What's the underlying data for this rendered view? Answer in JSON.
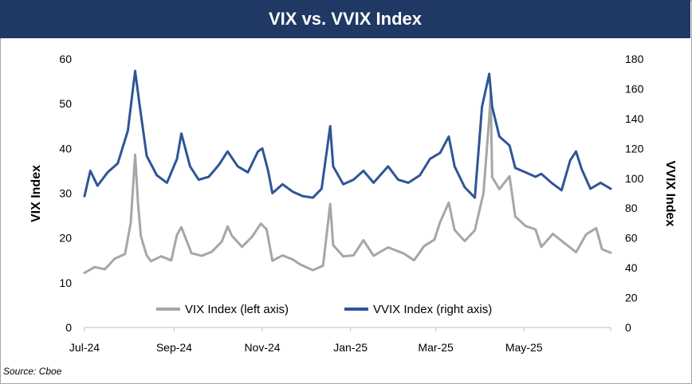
{
  "chart_data": {
    "type": "line",
    "title": "VIX vs. VVIX Index",
    "source": "Source: Cboe",
    "ylabel_left": "VIX Index",
    "ylabel_right": "VVIX Index",
    "ylim_left": [
      0,
      60
    ],
    "ylim_right": [
      0,
      180
    ],
    "yticks_left": [
      "0",
      "10",
      "20",
      "30",
      "40",
      "50",
      "60"
    ],
    "yticks_right": [
      "0",
      "20",
      "40",
      "60",
      "80",
      "100",
      "120",
      "140",
      "160",
      "180"
    ],
    "xticks": [
      {
        "label": "Jul-24",
        "date": "2024-07-01"
      },
      {
        "label": "Sep-24",
        "date": "2024-09-01"
      },
      {
        "label": "Nov-24",
        "date": "2024-11-01"
      },
      {
        "label": "Jan-25",
        "date": "2025-01-01"
      },
      {
        "label": "Mar-25",
        "date": "2025-03-01"
      },
      {
        "label": "May-25",
        "date": "2025-05-01"
      }
    ],
    "xlim": [
      "2024-07-01",
      "2025-06-30"
    ],
    "legend_position": "bottom",
    "series": [
      {
        "name": "VIX Index (left axis)",
        "axis": "left",
        "color": "#a6a6a6",
        "points": [
          [
            "2024-07-01",
            12.2
          ],
          [
            "2024-07-08",
            13.5
          ],
          [
            "2024-07-15",
            13.0
          ],
          [
            "2024-07-22",
            15.4
          ],
          [
            "2024-07-29",
            16.4
          ],
          [
            "2024-08-02",
            23.4
          ],
          [
            "2024-08-05",
            38.6
          ],
          [
            "2024-08-07",
            27.8
          ],
          [
            "2024-08-09",
            20.4
          ],
          [
            "2024-08-13",
            16.1
          ],
          [
            "2024-08-16",
            14.8
          ],
          [
            "2024-08-23",
            15.9
          ],
          [
            "2024-08-30",
            15.0
          ],
          [
            "2024-09-03",
            20.7
          ],
          [
            "2024-09-06",
            22.4
          ],
          [
            "2024-09-10",
            19.1
          ],
          [
            "2024-09-13",
            16.6
          ],
          [
            "2024-09-20",
            16.0
          ],
          [
            "2024-09-27",
            16.9
          ],
          [
            "2024-10-04",
            19.2
          ],
          [
            "2024-10-08",
            22.6
          ],
          [
            "2024-10-11",
            20.5
          ],
          [
            "2024-10-18",
            18.0
          ],
          [
            "2024-10-25",
            20.3
          ],
          [
            "2024-10-31",
            23.2
          ],
          [
            "2024-11-04",
            21.9
          ],
          [
            "2024-11-08",
            14.9
          ],
          [
            "2024-11-15",
            16.1
          ],
          [
            "2024-11-22",
            15.2
          ],
          [
            "2024-11-27",
            14.1
          ],
          [
            "2024-12-06",
            12.8
          ],
          [
            "2024-12-13",
            13.8
          ],
          [
            "2024-12-18",
            27.6
          ],
          [
            "2024-12-20",
            18.4
          ],
          [
            "2024-12-27",
            15.9
          ],
          [
            "2025-01-03",
            16.1
          ],
          [
            "2025-01-10",
            19.5
          ],
          [
            "2025-01-17",
            16.0
          ],
          [
            "2025-01-27",
            17.9
          ],
          [
            "2025-02-07",
            16.5
          ],
          [
            "2025-02-14",
            15.0
          ],
          [
            "2025-02-21",
            18.2
          ],
          [
            "2025-02-28",
            19.6
          ],
          [
            "2025-03-04",
            23.5
          ],
          [
            "2025-03-10",
            27.9
          ],
          [
            "2025-03-14",
            21.8
          ],
          [
            "2025-03-21",
            19.3
          ],
          [
            "2025-03-28",
            21.7
          ],
          [
            "2025-04-03",
            30.0
          ],
          [
            "2025-04-07",
            46.9
          ],
          [
            "2025-04-08",
            52.3
          ],
          [
            "2025-04-09",
            33.6
          ],
          [
            "2025-04-14",
            30.9
          ],
          [
            "2025-04-21",
            33.8
          ],
          [
            "2025-04-25",
            24.8
          ],
          [
            "2025-05-02",
            22.7
          ],
          [
            "2025-05-09",
            21.9
          ],
          [
            "2025-05-13",
            18.0
          ],
          [
            "2025-05-21",
            20.9
          ],
          [
            "2025-05-30",
            18.6
          ],
          [
            "2025-06-06",
            16.8
          ],
          [
            "2025-06-13",
            20.8
          ],
          [
            "2025-06-20",
            22.2
          ],
          [
            "2025-06-24",
            17.5
          ],
          [
            "2025-06-30",
            16.7
          ]
        ]
      },
      {
        "name": "VVIX Index (right axis)",
        "axis": "right",
        "color": "#2f5597",
        "points": [
          [
            "2024-07-01",
            88
          ],
          [
            "2024-07-05",
            105
          ],
          [
            "2024-07-10",
            95
          ],
          [
            "2024-07-17",
            104
          ],
          [
            "2024-07-24",
            110
          ],
          [
            "2024-07-31",
            132
          ],
          [
            "2024-08-05",
            172
          ],
          [
            "2024-08-08",
            150
          ],
          [
            "2024-08-13",
            115
          ],
          [
            "2024-08-20",
            102
          ],
          [
            "2024-08-27",
            97
          ],
          [
            "2024-09-03",
            113
          ],
          [
            "2024-09-06",
            130
          ],
          [
            "2024-09-12",
            108
          ],
          [
            "2024-09-18",
            99
          ],
          [
            "2024-09-25",
            101
          ],
          [
            "2024-10-02",
            109
          ],
          [
            "2024-10-08",
            118
          ],
          [
            "2024-10-15",
            108
          ],
          [
            "2024-10-22",
            104
          ],
          [
            "2024-10-29",
            118
          ],
          [
            "2024-11-01",
            120
          ],
          [
            "2024-11-05",
            105
          ],
          [
            "2024-11-08",
            90
          ],
          [
            "2024-11-15",
            96
          ],
          [
            "2024-11-22",
            91
          ],
          [
            "2024-11-29",
            88
          ],
          [
            "2024-12-06",
            87
          ],
          [
            "2024-12-12",
            93
          ],
          [
            "2024-12-18",
            135
          ],
          [
            "2024-12-20",
            108
          ],
          [
            "2024-12-27",
            96
          ],
          [
            "2025-01-03",
            99
          ],
          [
            "2025-01-10",
            105
          ],
          [
            "2025-01-17",
            97
          ],
          [
            "2025-01-27",
            108
          ],
          [
            "2025-02-03",
            99
          ],
          [
            "2025-02-10",
            97
          ],
          [
            "2025-02-18",
            102
          ],
          [
            "2025-02-25",
            113
          ],
          [
            "2025-03-04",
            117
          ],
          [
            "2025-03-10",
            128
          ],
          [
            "2025-03-14",
            108
          ],
          [
            "2025-03-21",
            94
          ],
          [
            "2025-03-28",
            87
          ],
          [
            "2025-04-02",
            148
          ],
          [
            "2025-04-07",
            170
          ],
          [
            "2025-04-09",
            148
          ],
          [
            "2025-04-14",
            128
          ],
          [
            "2025-04-21",
            122
          ],
          [
            "2025-04-25",
            107
          ],
          [
            "2025-05-02",
            104
          ],
          [
            "2025-05-09",
            101
          ],
          [
            "2025-05-13",
            103
          ],
          [
            "2025-05-20",
            97
          ],
          [
            "2025-05-27",
            92
          ],
          [
            "2025-06-02",
            112
          ],
          [
            "2025-06-06",
            118
          ],
          [
            "2025-06-10",
            106
          ],
          [
            "2025-06-16",
            93
          ],
          [
            "2025-06-23",
            97
          ],
          [
            "2025-06-30",
            93
          ]
        ]
      }
    ]
  }
}
